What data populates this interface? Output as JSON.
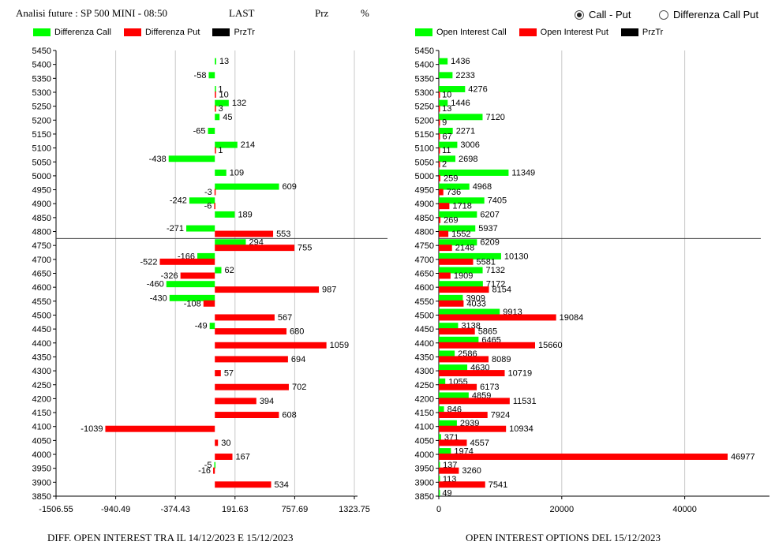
{
  "header": {
    "title": "Analisi future : SP 500 MINI - 08:50",
    "last_label": "LAST",
    "prz_label": "Prz",
    "pct_label": "%"
  },
  "mode_selector": {
    "option_call_put": "Call - Put",
    "option_diff": "Differenza Call Put",
    "selected": "Call - Put"
  },
  "colors": {
    "call": "#00ff00",
    "put": "#ff0000",
    "prztr": "#000000"
  },
  "left_legend": [
    "Differenza Call",
    "Differenza Put",
    "PrzTr"
  ],
  "right_legend": [
    "Open Interest Call",
    "Open Interest Put",
    "PrzTr"
  ],
  "chart_data": [
    {
      "type": "bar",
      "orientation": "horizontal",
      "title": "DIFF. OPEN INTEREST TRA IL 14/12/2023 E 15/12/2023",
      "categories": [
        5450,
        5400,
        5350,
        5300,
        5250,
        5200,
        5150,
        5100,
        5050,
        5000,
        4950,
        4900,
        4850,
        4800,
        4750,
        4700,
        4650,
        4600,
        4550,
        4500,
        4450,
        4400,
        4350,
        4300,
        4250,
        4200,
        4150,
        4100,
        4050,
        4000,
        3950,
        3900,
        3850
      ],
      "xlim": [
        -1506.55,
        1323.75
      ],
      "x_ticks": [
        "-1506.55",
        "-940.49",
        "-374.43",
        "191.63",
        "757.69",
        "1323.75"
      ],
      "prztr_level": 4775,
      "series": [
        {
          "name": "Differenza Call",
          "color": "#00ff00",
          "values": [
            null,
            13,
            -58,
            1,
            132,
            45,
            -65,
            214,
            -438,
            109,
            609,
            -242,
            189,
            -271,
            294,
            -166,
            62,
            -460,
            -430,
            null,
            -49,
            null,
            null,
            null,
            null,
            null,
            null,
            null,
            null,
            null,
            -5,
            null,
            null
          ]
        },
        {
          "name": "Differenza Put",
          "color": "#ff0000",
          "values": [
            null,
            null,
            null,
            10,
            3,
            null,
            null,
            1,
            null,
            null,
            -3,
            -6,
            null,
            553,
            755,
            -522,
            -326,
            987,
            -108,
            567,
            680,
            1059,
            694,
            57,
            702,
            394,
            608,
            -1039,
            30,
            167,
            -16,
            534,
            null
          ]
        }
      ]
    },
    {
      "type": "bar",
      "orientation": "horizontal",
      "title": "OPEN INTEREST OPTIONS DEL 15/12/2023",
      "categories": [
        5450,
        5400,
        5350,
        5300,
        5250,
        5200,
        5150,
        5100,
        5050,
        5000,
        4950,
        4900,
        4850,
        4800,
        4750,
        4700,
        4650,
        4600,
        4550,
        4500,
        4450,
        4400,
        4350,
        4300,
        4250,
        4200,
        4150,
        4100,
        4050,
        4000,
        3950,
        3900,
        3850
      ],
      "xlim": [
        0,
        52500
      ],
      "x_ticks": [
        "0",
        "20000",
        "40000"
      ],
      "prztr_level": 4775,
      "series": [
        {
          "name": "Open Interest Call",
          "color": "#00ff00",
          "values": [
            null,
            1436,
            2233,
            4276,
            1446,
            7120,
            2271,
            3006,
            2698,
            11349,
            4968,
            7405,
            6207,
            5937,
            6209,
            10130,
            7132,
            7172,
            3909,
            9913,
            3138,
            6465,
            2586,
            4630,
            1055,
            4859,
            846,
            2939,
            371,
            1974,
            137,
            113,
            49
          ]
        },
        {
          "name": "Open Interest Put",
          "color": "#ff0000",
          "values": [
            null,
            null,
            null,
            10,
            13,
            9,
            67,
            11,
            2,
            259,
            736,
            1718,
            269,
            1552,
            2148,
            5581,
            1909,
            8154,
            4033,
            19084,
            5865,
            15660,
            8089,
            10719,
            6173,
            11531,
            7924,
            10934,
            4557,
            46977,
            3260,
            7541,
            null
          ]
        }
      ]
    }
  ]
}
